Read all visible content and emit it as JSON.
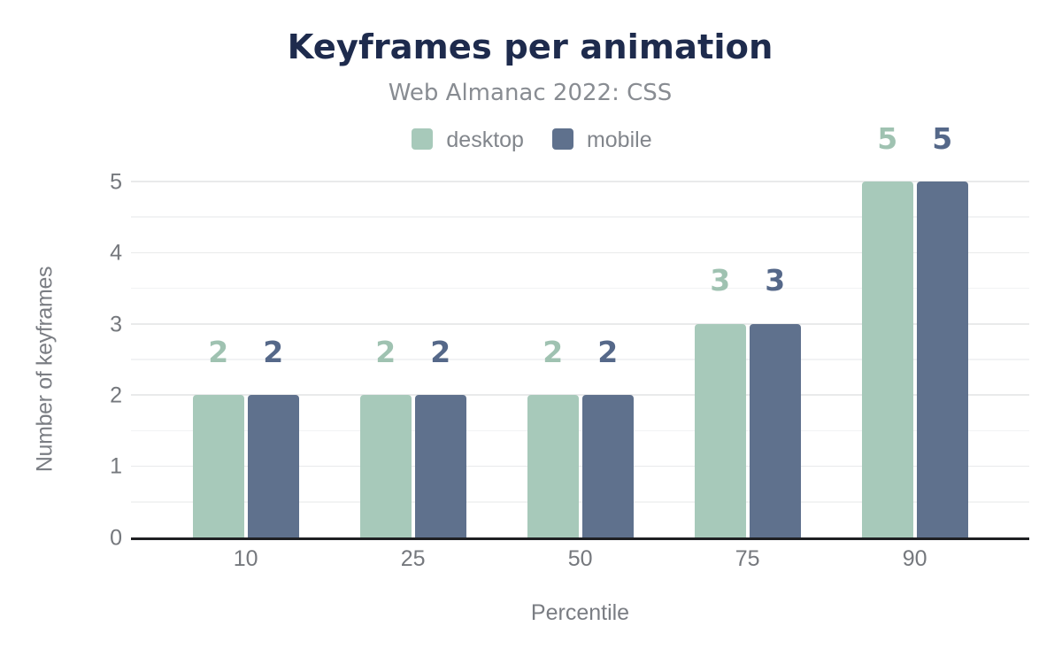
{
  "page": {
    "background": "#ffffff"
  },
  "chart_data": {
    "type": "bar",
    "title": "Keyframes per animation",
    "subtitle": "Web Almanac 2022: CSS",
    "categories": [
      "10",
      "25",
      "50",
      "75",
      "90"
    ],
    "series": [
      {
        "name": "desktop",
        "color": "#a7c9ba",
        "label_color": "#9fc2b1",
        "values": [
          2,
          2,
          2,
          3,
          5
        ]
      },
      {
        "name": "mobile",
        "color": "#5f718d",
        "label_color": "#556889",
        "values": [
          2,
          2,
          2,
          3,
          5
        ]
      }
    ],
    "xlabel": "Percentile",
    "ylabel": "Number of keyframes",
    "ylim": [
      0,
      5
    ],
    "yticks": [
      0,
      1,
      2,
      3,
      4,
      5
    ],
    "grid": {
      "axis": "y",
      "major_every": 1,
      "minor_every": 0.5
    },
    "legend_position": "top",
    "bar_value_labels": true,
    "colors": {
      "title": "#1e2b4d",
      "subtitle": "#888c92",
      "legend_text": "#82868c",
      "tick_text": "#75787d",
      "axis_title_text": "#7a7d83",
      "grid_major": "#e9eaeb",
      "grid_minor": "#f2f3f4",
      "baseline": "#1f2023"
    }
  }
}
